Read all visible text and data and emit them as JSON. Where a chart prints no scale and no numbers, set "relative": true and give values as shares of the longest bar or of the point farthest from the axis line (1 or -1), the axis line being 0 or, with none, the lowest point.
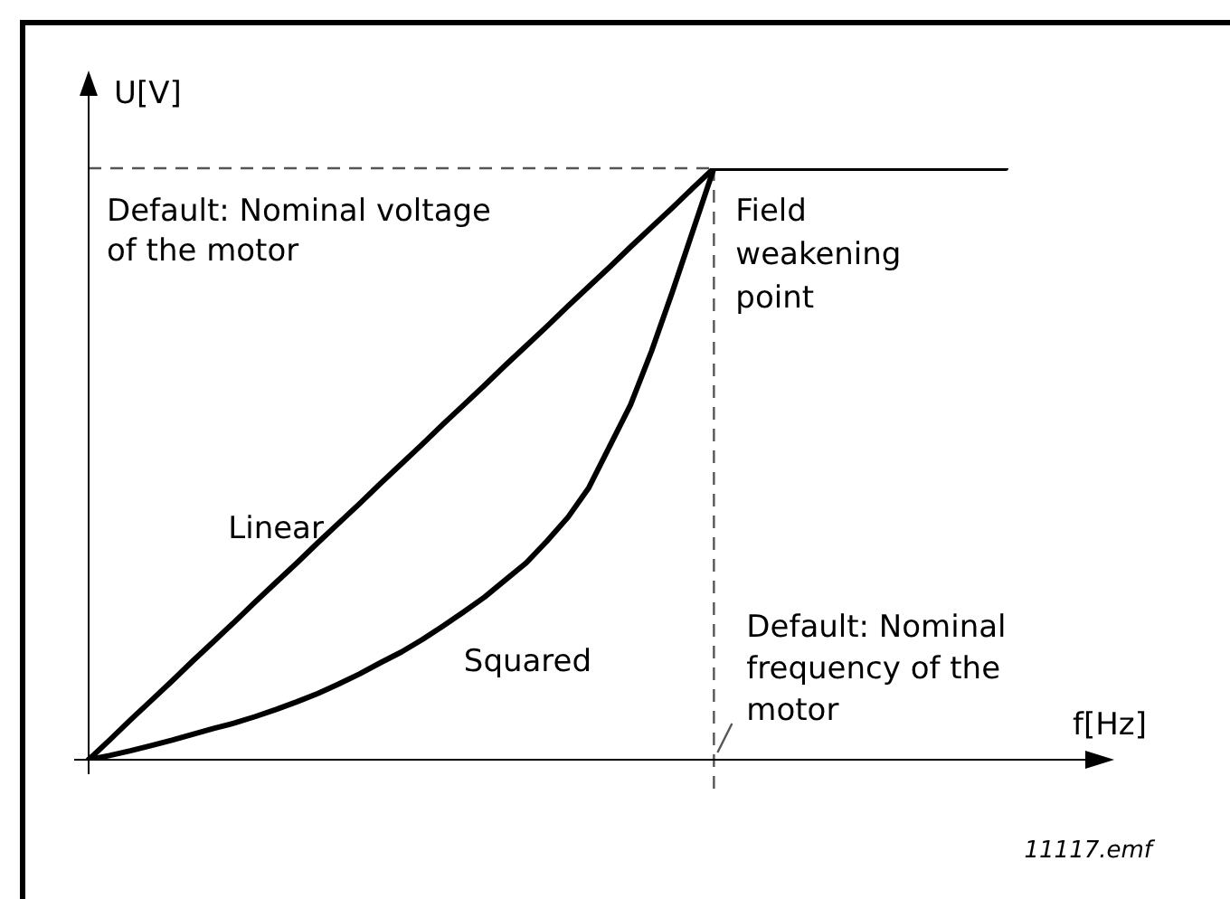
{
  "chart_data": {
    "type": "line",
    "relative": true,
    "xlabel": "f[Hz]",
    "ylabel": "U[V]",
    "categories": [
      null,
      null,
      null,
      null,
      null,
      null,
      null,
      null,
      null,
      null,
      null,
      null,
      null,
      null,
      null,
      null,
      null,
      null,
      null,
      null,
      null,
      null,
      null,
      null,
      null,
      null,
      null,
      null,
      null,
      null,
      null,
      null,
      null,
      null,
      null,
      null,
      null,
      null,
      null,
      null,
      null,
      null,
      null,
      null,
      null
    ],
    "series": [
      {
        "name": "Linear",
        "color": "#000000",
        "values": [
          0,
          0.033,
          0.067,
          0.1,
          0.133,
          0.167,
          0.2,
          0.233,
          0.267,
          0.3,
          0.333,
          0.367,
          0.4,
          0.433,
          0.467,
          0.5,
          0.533,
          0.567,
          0.6,
          0.633,
          0.667,
          0.7,
          0.733,
          0.767,
          0.8,
          0.833,
          0.867,
          0.9,
          0.933,
          0.967,
          1,
          1,
          1,
          1,
          1,
          1,
          1,
          1,
          1,
          1,
          1,
          1,
          1,
          1,
          1
        ]
      },
      {
        "name": "Squared",
        "color": "#000000",
        "values": [
          0,
          0.007,
          0.015,
          0.024,
          0.033,
          0.043,
          0.053,
          0.062,
          0.073,
          0.085,
          0.098,
          0.112,
          0.128,
          0.145,
          0.164,
          0.182,
          0.203,
          0.226,
          0.25,
          0.275,
          0.304,
          0.333,
          0.37,
          0.41,
          0.46,
          0.53,
          0.6,
          0.69,
          0.79,
          0.895,
          1,
          null,
          null,
          null,
          null,
          null,
          null,
          null,
          null,
          null,
          null,
          null,
          null,
          null,
          null
        ]
      }
    ],
    "ref_lines": [
      {
        "axis": "y",
        "value": 1,
        "label": "Default: Nominal voltage of the motor",
        "color": "#555555",
        "line_style": "dashed"
      },
      {
        "axis": "x",
        "label": "Default: Nominal frequency of the motor",
        "color": "#555555",
        "line_style": "dashed"
      }
    ],
    "annotations": [
      {
        "text": "Field weakening point",
        "y": 1
      },
      "11117.emf"
    ],
    "legend": false,
    "marker": "none",
    "line_style": "solid"
  }
}
